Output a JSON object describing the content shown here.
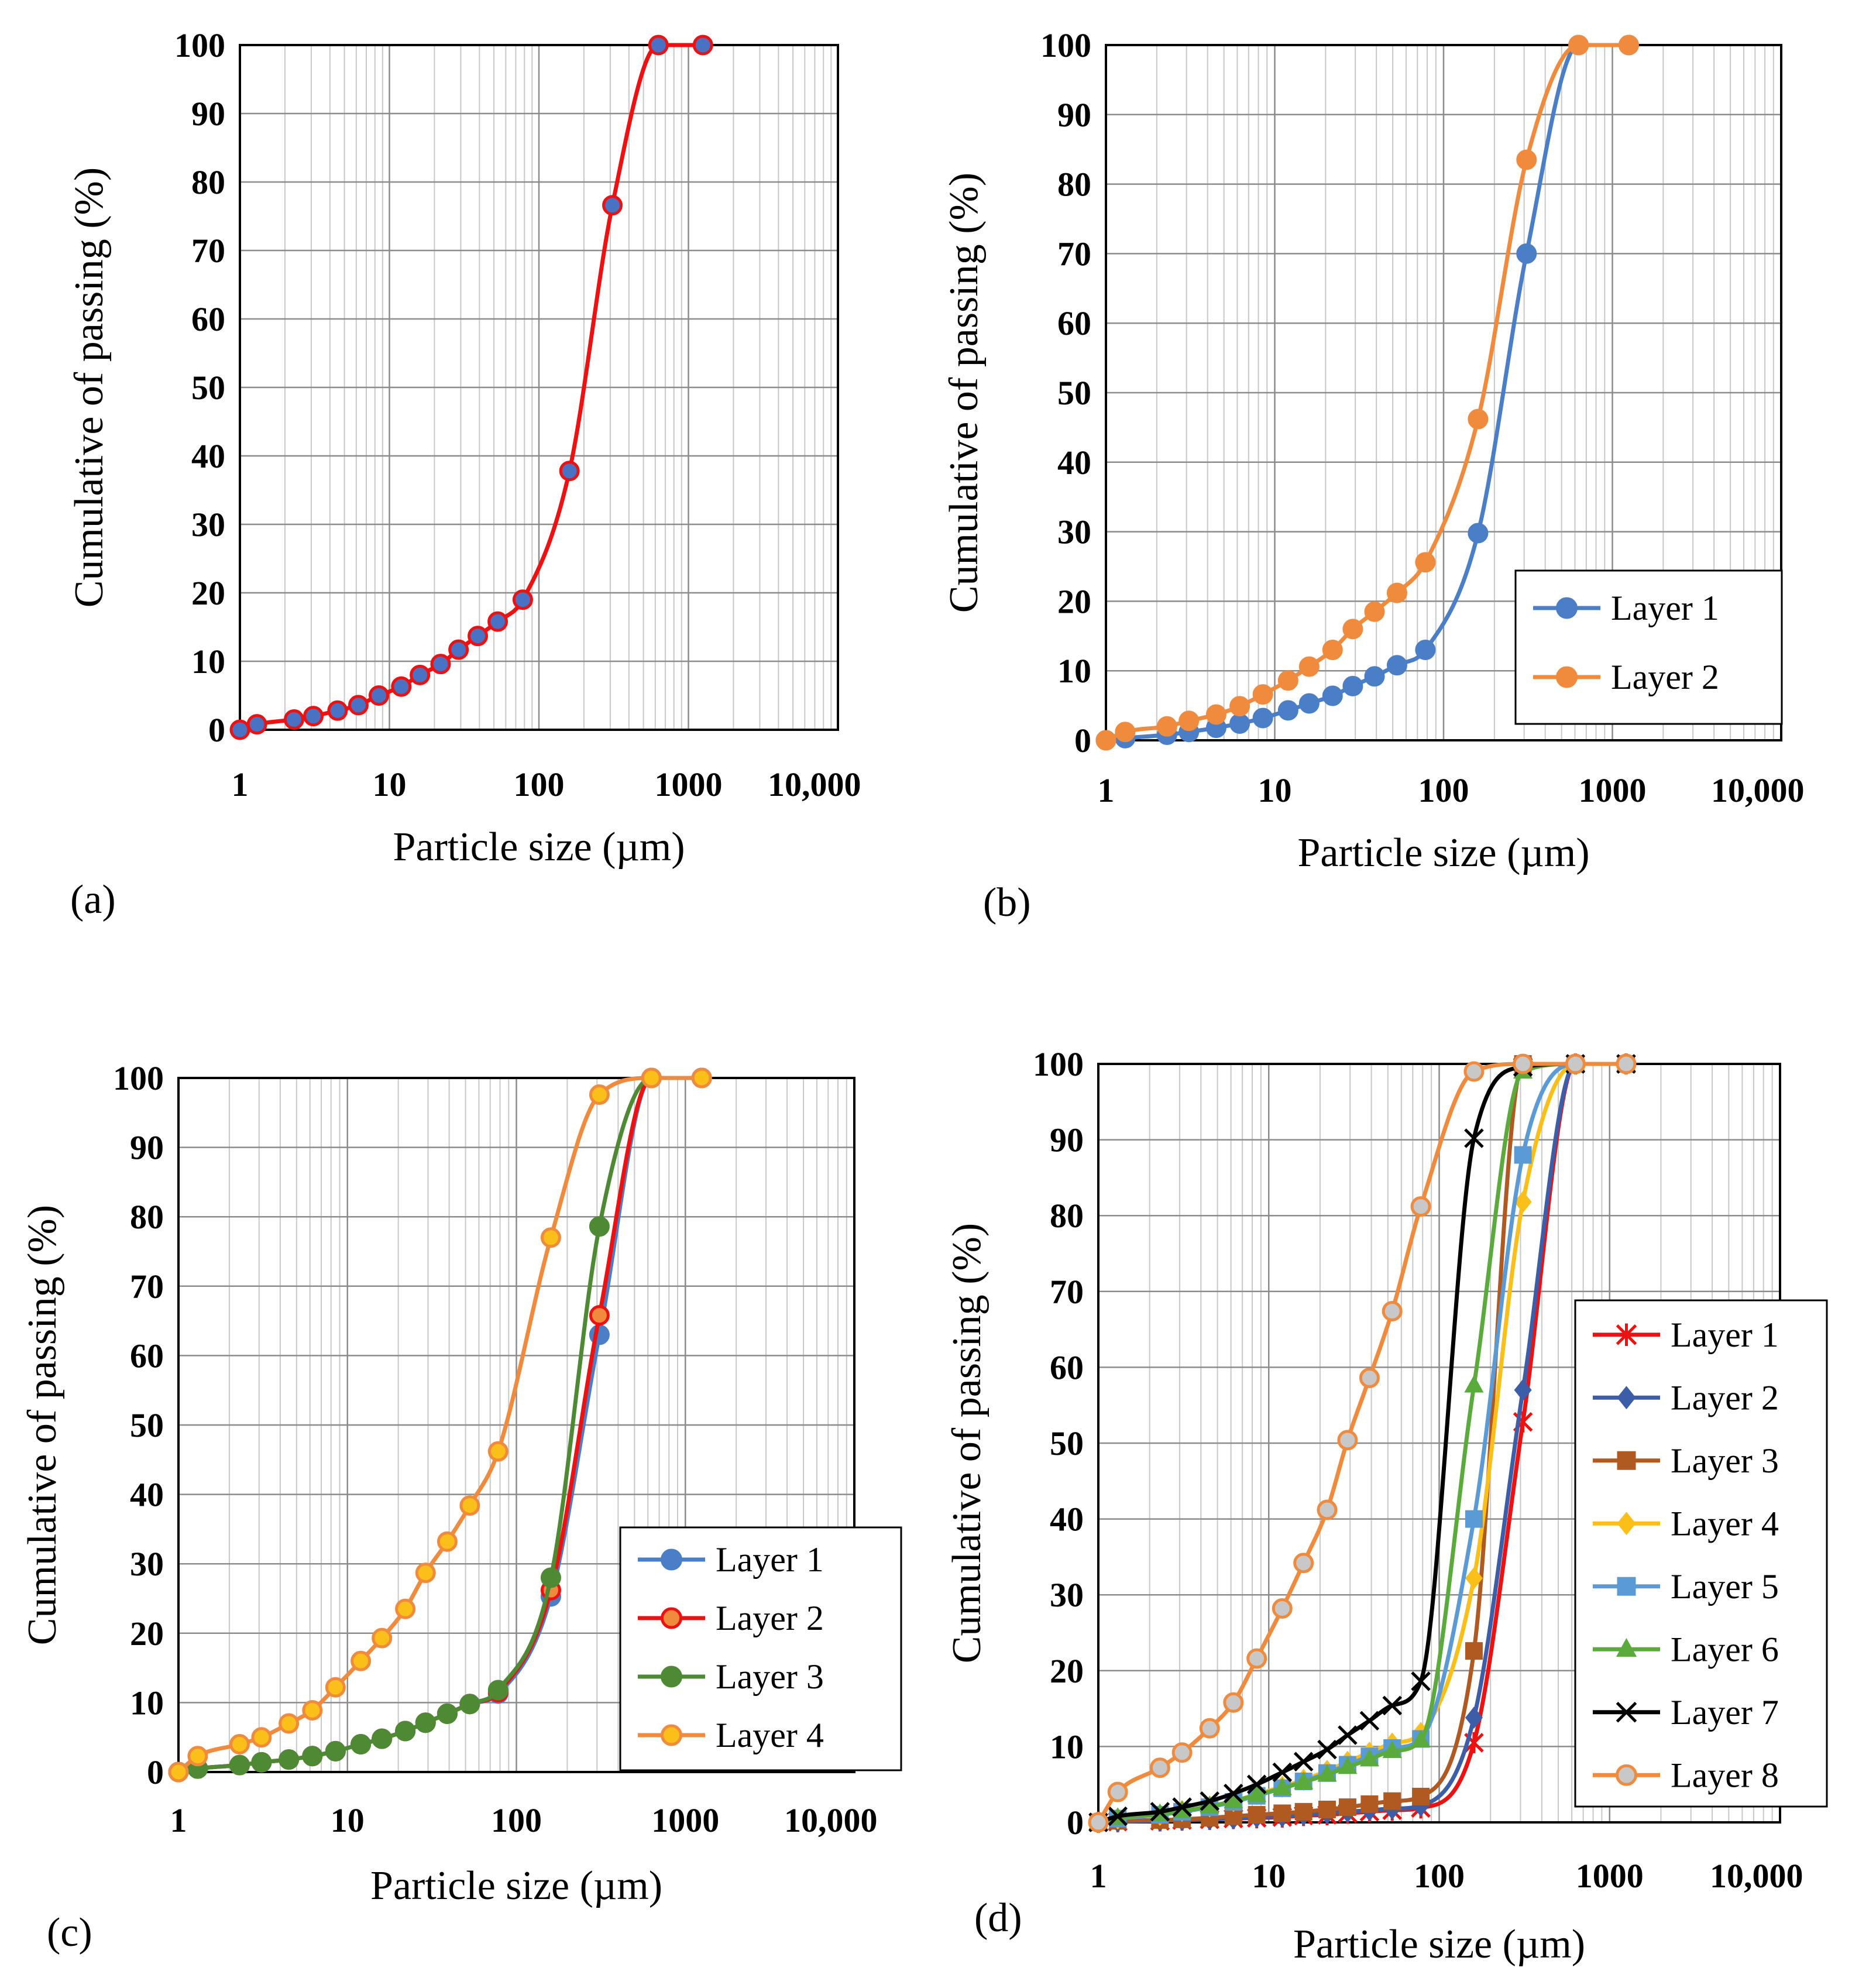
{
  "figure": {
    "panels": [
      "a",
      "b",
      "c",
      "d"
    ]
  },
  "chart_data": [
    {
      "panel_label": "(a)",
      "type": "line",
      "xscale": "log",
      "xlim": [
        1,
        10000
      ],
      "ylim": [
        0,
        100
      ],
      "x_ticks": [
        "1",
        "10",
        "100",
        "1000",
        "10,000"
      ],
      "y_ticks": [
        "0",
        "10",
        "20",
        "30",
        "40",
        "50",
        "60",
        "70",
        "80",
        "90",
        "100"
      ],
      "xlabel": "Particle size (µm)",
      "ylabel": "Cumulative of passing (%)",
      "grid": true,
      "legend": "none",
      "series": [
        {
          "name": "",
          "color": "#ee1111",
          "marker": "circle",
          "marker_fill": "#4a72c4",
          "x": [
            1,
            1.3,
            2.3,
            3.1,
            4.5,
            6.2,
            8.5,
            12,
            16,
            22,
            29,
            39,
            53,
            78,
            160,
            310,
            630,
            1250
          ],
          "y": [
            0,
            0.8,
            1.5,
            2,
            2.8,
            3.6,
            5,
            6.3,
            8,
            9.6,
            11.7,
            13.7,
            15.8,
            19,
            37.8,
            76.6,
            100,
            100
          ]
        }
      ]
    },
    {
      "panel_label": "(b)",
      "type": "line",
      "xscale": "log",
      "xlim": [
        1,
        10000
      ],
      "ylim": [
        0,
        100
      ],
      "x_ticks": [
        "1",
        "10",
        "100",
        "1000",
        "10,000"
      ],
      "y_ticks": [
        "0",
        "10",
        "20",
        "30",
        "40",
        "50",
        "60",
        "70",
        "80",
        "90",
        "100"
      ],
      "xlabel": "Particle size (µm)",
      "ylabel": "Cumulative of passing (%)",
      "grid": true,
      "legend": "bottom-right",
      "series": [
        {
          "name": "Layer 1",
          "color": "#4a7ec6",
          "marker": "circle",
          "marker_fill": "#4a7ec6",
          "x": [
            1,
            1.3,
            2.3,
            3.1,
            4.5,
            6.2,
            8.5,
            12,
            16,
            22,
            29,
            39,
            53,
            78,
            160,
            310,
            630,
            1250
          ],
          "y": [
            0,
            0.3,
            0.8,
            1.2,
            1.8,
            2.4,
            3.2,
            4.3,
            5.3,
            6.4,
            7.8,
            9.2,
            10.8,
            13,
            29.8,
            70,
            100,
            100
          ]
        },
        {
          "name": "Layer 2",
          "color": "#f08a3c",
          "marker": "circle",
          "marker_fill": "#f08a3c",
          "x": [
            1,
            1.3,
            2.3,
            3.1,
            4.5,
            6.2,
            8.5,
            12,
            16,
            22,
            29,
            39,
            53,
            78,
            160,
            310,
            630,
            1250
          ],
          "y": [
            0,
            1.2,
            2,
            2.8,
            3.7,
            4.9,
            6.6,
            8.6,
            10.6,
            13,
            16,
            18.5,
            21.2,
            25.6,
            46.2,
            83.5,
            100,
            100
          ]
        }
      ]
    },
    {
      "panel_label": "(c)",
      "type": "line",
      "xscale": "log",
      "xlim": [
        1,
        10000
      ],
      "ylim": [
        0,
        100
      ],
      "x_ticks": [
        "1",
        "10",
        "100",
        "1000",
        "10,000"
      ],
      "y_ticks": [
        "0",
        "10",
        "20",
        "30",
        "40",
        "50",
        "60",
        "70",
        "80",
        "90",
        "100"
      ],
      "xlabel": "Particle size (µm)",
      "ylabel": "Cumulative of passing (%)",
      "grid": true,
      "legend": "bottom-right",
      "series": [
        {
          "name": "Layer 1",
          "color": "#4a7ec6",
          "marker": "circle",
          "marker_fill": "#4a7ec6",
          "x": [
            1,
            1.3,
            2.3,
            3.1,
            4.5,
            6.2,
            8.5,
            12,
            16,
            22,
            29,
            39,
            53,
            78,
            160,
            310,
            630,
            1250
          ],
          "y": [
            0,
            0.5,
            1,
            1.4,
            1.8,
            2.3,
            3,
            4,
            4.8,
            5.9,
            7.1,
            8.4,
            9.8,
            11.3,
            25.3,
            63,
            100,
            100
          ]
        },
        {
          "name": "Layer 2",
          "color": "#ee1111",
          "marker": "circle",
          "marker_fill": "#f08a3c",
          "x": [
            1,
            1.3,
            2.3,
            3.1,
            4.5,
            6.2,
            8.5,
            12,
            16,
            22,
            29,
            39,
            53,
            78,
            160,
            310,
            630,
            1250
          ],
          "y": [
            0,
            0.5,
            1,
            1.4,
            1.8,
            2.3,
            3,
            4,
            4.8,
            5.9,
            7.1,
            8.4,
            9.8,
            11.5,
            26.2,
            65.8,
            100,
            100
          ]
        },
        {
          "name": "Layer 3",
          "color": "#4e8a34",
          "marker": "circle",
          "marker_fill": "#4e8a34",
          "x": [
            1,
            1.3,
            2.3,
            3.1,
            4.5,
            6.2,
            8.5,
            12,
            16,
            22,
            29,
            39,
            53,
            78,
            160,
            310,
            630,
            1250
          ],
          "y": [
            0,
            0.5,
            1,
            1.4,
            1.8,
            2.3,
            3,
            4,
            4.8,
            5.9,
            7.1,
            8.4,
            9.8,
            11.8,
            28,
            78.6,
            100,
            100
          ]
        },
        {
          "name": "Layer 4",
          "color": "#f08a3c",
          "marker": "circle",
          "marker_fill": "#fbbf1a",
          "x": [
            1,
            1.3,
            2.3,
            3.1,
            4.5,
            6.2,
            8.5,
            12,
            16,
            22,
            29,
            39,
            53,
            78,
            160,
            310,
            630,
            1250
          ],
          "y": [
            0,
            2.3,
            4,
            5,
            7,
            8.9,
            12.2,
            16,
            19.3,
            23.5,
            28.7,
            33.2,
            38.4,
            46.2,
            77,
            97.6,
            100,
            100
          ]
        }
      ]
    },
    {
      "panel_label": "(d)",
      "type": "line",
      "xscale": "log",
      "xlim": [
        1,
        10000
      ],
      "ylim": [
        0,
        100
      ],
      "x_ticks": [
        "1",
        "10",
        "100",
        "1000",
        "10,000"
      ],
      "y_ticks": [
        "0",
        "10",
        "20",
        "30",
        "40",
        "50",
        "60",
        "70",
        "80",
        "90",
        "100"
      ],
      "xlabel": "Particle size (µm)",
      "ylabel": "Cumulative of passing (%)",
      "grid": true,
      "legend": "right",
      "series": [
        {
          "name": "Layer 1",
          "color": "#ee1111",
          "marker": "star",
          "marker_fill": "#ee1111",
          "x": [
            1,
            1.3,
            2.3,
            3.1,
            4.5,
            6.2,
            8.5,
            12,
            16,
            22,
            29,
            39,
            53,
            78,
            160,
            310,
            630,
            1250
          ],
          "y": [
            0,
            0.1,
            0.2,
            0.3,
            0.4,
            0.5,
            0.6,
            0.7,
            0.9,
            1,
            1.2,
            1.4,
            1.6,
            1.9,
            10.5,
            52.8,
            100,
            100
          ]
        },
        {
          "name": "Layer 2",
          "color": "#3c5ea8",
          "marker": "diamond",
          "marker_fill": "#3c5ea8",
          "x": [
            1,
            1.3,
            2.3,
            3.1,
            4.5,
            6.2,
            8.5,
            12,
            16,
            22,
            29,
            39,
            53,
            78,
            160,
            310,
            630,
            1250
          ],
          "y": [
            0,
            0.1,
            0.2,
            0.3,
            0.4,
            0.5,
            0.7,
            0.8,
            1,
            1.2,
            1.4,
            1.6,
            1.8,
            2.2,
            13.8,
            57,
            100,
            100
          ]
        },
        {
          "name": "Layer 3",
          "color": "#b05a22",
          "marker": "square",
          "marker_fill": "#b05a22",
          "x": [
            1,
            1.3,
            2.3,
            3.1,
            4.5,
            6.2,
            8.5,
            12,
            16,
            22,
            29,
            39,
            53,
            78,
            160,
            310,
            630,
            1250
          ],
          "y": [
            0,
            0.2,
            0.3,
            0.4,
            0.6,
            0.8,
            1,
            1.2,
            1.4,
            1.7,
            2,
            2.4,
            2.8,
            3.4,
            22.6,
            100,
            100,
            100
          ]
        },
        {
          "name": "Layer 4",
          "color": "#fbbf1a",
          "marker": "diamond",
          "marker_fill": "#fbbf1a",
          "x": [
            1,
            1.3,
            2.3,
            3.1,
            4.5,
            6.2,
            8.5,
            12,
            16,
            22,
            29,
            39,
            53,
            78,
            160,
            310,
            630,
            1250
          ],
          "y": [
            0,
            0.5,
            1,
            1.5,
            2.1,
            2.8,
            3.7,
            4.7,
            5.6,
            6.8,
            8,
            9.2,
            10.4,
            11.8,
            32.2,
            81.8,
            100,
            100
          ]
        },
        {
          "name": "Layer 5",
          "color": "#5b9bd5",
          "marker": "square",
          "marker_fill": "#5b9bd5",
          "x": [
            1,
            1.3,
            2.3,
            3.1,
            4.5,
            6.2,
            8.5,
            12,
            16,
            22,
            29,
            39,
            53,
            78,
            160,
            310,
            630,
            1250
          ],
          "y": [
            0,
            0.5,
            1,
            1.4,
            2,
            2.7,
            3.5,
            4.5,
            5.4,
            6.5,
            7.6,
            8.7,
            9.8,
            11,
            40,
            88,
            100,
            100
          ]
        },
        {
          "name": "Layer 6",
          "color": "#5aaa3c",
          "marker": "triangle",
          "marker_fill": "#5aaa3c",
          "x": [
            1,
            1.3,
            2.3,
            3.1,
            4.5,
            6.2,
            8.5,
            12,
            16,
            22,
            29,
            39,
            53,
            78,
            160,
            310,
            630,
            1250
          ],
          "y": [
            0,
            0.6,
            1.1,
            1.5,
            2.1,
            2.8,
            3.6,
            4.5,
            5.3,
            6.3,
            7.3,
            8.3,
            9.4,
            10.8,
            57.6,
            99,
            100,
            100
          ]
        },
        {
          "name": "Layer 7",
          "color": "#000000",
          "marker": "x",
          "marker_fill": "#000000",
          "x": [
            1,
            1.3,
            2.3,
            3.1,
            4.5,
            6.2,
            8.5,
            12,
            16,
            22,
            29,
            39,
            53,
            78,
            160,
            310,
            630,
            1250
          ],
          "y": [
            0,
            0.8,
            1.4,
            2,
            2.8,
            3.8,
            5,
            6.6,
            8,
            9.6,
            11.5,
            13.4,
            15.4,
            18.6,
            90.2,
            99.6,
            100,
            100
          ]
        },
        {
          "name": "Layer 8",
          "color": "#f08a3c",
          "marker": "circle",
          "marker_fill": "#c8c8c8",
          "x": [
            1,
            1.3,
            2.3,
            3.1,
            4.5,
            6.2,
            8.5,
            12,
            16,
            22,
            29,
            39,
            53,
            78,
            160,
            310,
            630,
            1250
          ],
          "y": [
            0,
            4,
            7.2,
            9.2,
            12.4,
            15.8,
            21.6,
            28.2,
            34.2,
            41.2,
            50.4,
            58.6,
            67.4,
            81.2,
            99,
            100,
            100,
            100
          ]
        }
      ]
    }
  ]
}
